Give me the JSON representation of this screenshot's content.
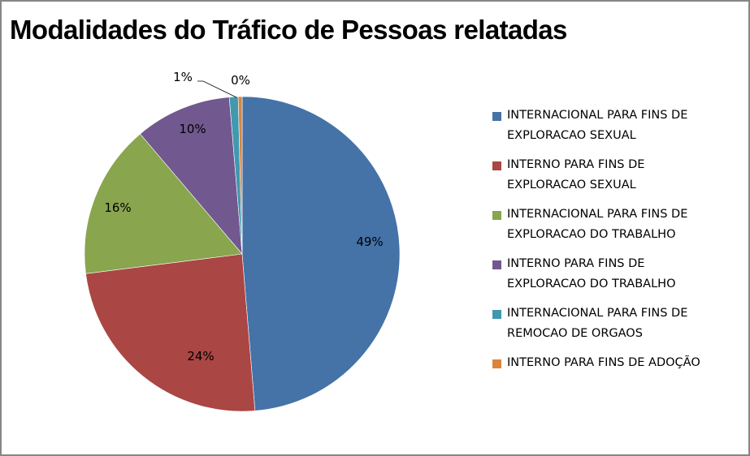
{
  "chart_data": {
    "type": "pie",
    "title": "Modalidades do Tráfico de Pessoas relatadas",
    "start_angle_deg": 0,
    "direction": "clockwise",
    "legend_position": "right",
    "slices": [
      {
        "label": "INTERNACIONAL PARA FINS DE EXPLORACAO SEXUAL",
        "value": 48.7,
        "display": "49%",
        "color": "#4572A7"
      },
      {
        "label": "INTERNO PARA FINS DE EXPLORACAO SEXUAL",
        "value": 24.3,
        "display": "24%",
        "color": "#AA4643"
      },
      {
        "label": "INTERNACIONAL PARA FINS DE EXPLORACAO DO TRABALHO",
        "value": 15.8,
        "display": "16%",
        "color": "#89A54E"
      },
      {
        "label": "INTERNO PARA FINS DE EXPLORACAO DO TRABALHO",
        "value": 9.9,
        "display": "10%",
        "color": "#71588F"
      },
      {
        "label": "INTERNACIONAL PARA FINS DE REMOCAO DE ORGAOS",
        "value": 0.9,
        "display": "1%",
        "color": "#4198AF"
      },
      {
        "label": "INTERNO PARA FINS DE ADOÇÃO",
        "value": 0.4,
        "display": "0%",
        "color": "#DB843D"
      }
    ]
  },
  "legend": [
    {
      "line1": "INTERNACIONAL PARA FINS DE",
      "line2": "EXPLORACAO SEXUAL",
      "color": "#4572A7"
    },
    {
      "line1": "INTERNO PARA FINS DE",
      "line2": "EXPLORACAO SEXUAL",
      "color": "#AA4643"
    },
    {
      "line1": "INTERNACIONAL PARA FINS DE",
      "line2": "EXPLORACAO DO TRABALHO",
      "color": "#89A54E"
    },
    {
      "line1": "INTERNO PARA FINS DE",
      "line2": "EXPLORACAO DO TRABALHO",
      "color": "#71588F"
    },
    {
      "line1": "INTERNACIONAL PARA FINS DE",
      "line2": "REMOCAO DE ORGAOS",
      "color": "#4198AF"
    },
    {
      "line1": "INTERNO PARA FINS DE ADOÇÃO",
      "line2": "",
      "color": "#DB843D"
    }
  ]
}
